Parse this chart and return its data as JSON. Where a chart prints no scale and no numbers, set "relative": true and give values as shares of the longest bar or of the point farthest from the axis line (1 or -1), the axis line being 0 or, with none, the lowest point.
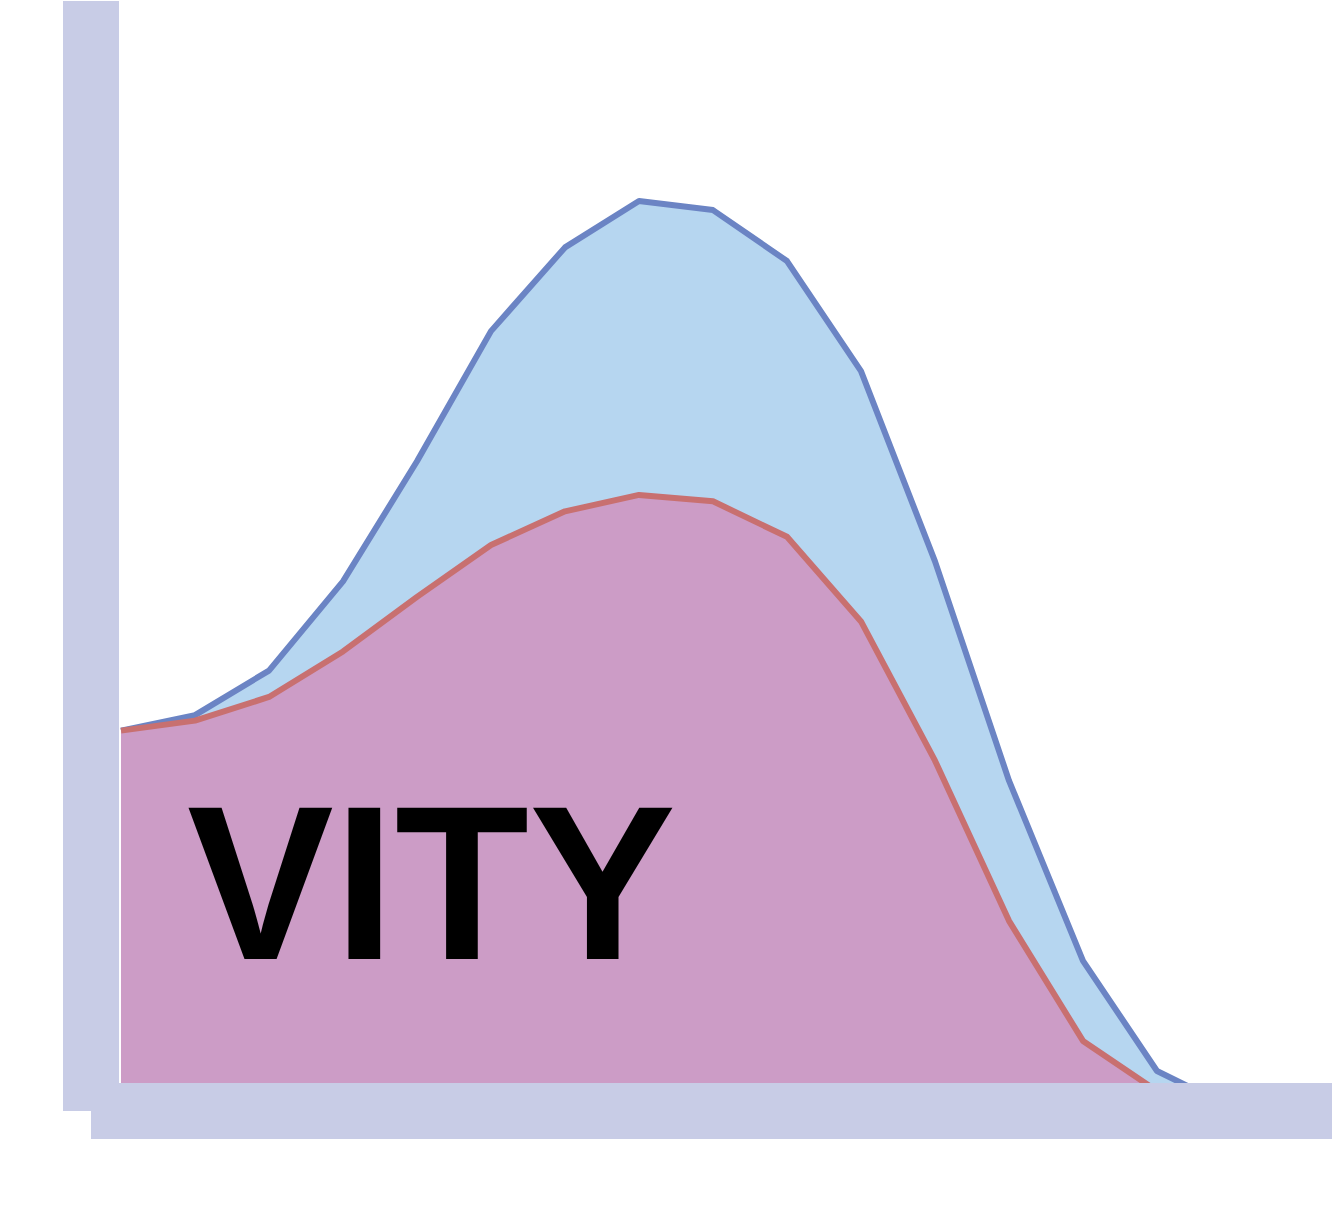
{
  "chart_data": {
    "type": "area",
    "relative": true,
    "categories": [
      null,
      null,
      null,
      null,
      null,
      null,
      null,
      null,
      null,
      null,
      null,
      null,
      null,
      null,
      null,
      null
    ],
    "series": [
      {
        "color": "#6b84c4",
        "values": [
          0.418,
          0.435,
          0.484,
          0.582,
          0.714,
          0.857,
          0.949,
          1.0,
          0.99,
          0.934,
          0.813,
          0.604,
          0.363,
          0.165,
          0.044,
          0.004
        ]
      },
      {
        "color": "#c87070",
        "values": [
          0.418,
          0.429,
          0.455,
          0.505,
          0.565,
          0.622,
          0.659,
          0.677,
          0.67,
          0.631,
          0.538,
          0.385,
          0.209,
          0.077,
          0.022,
          0.004
        ]
      }
    ],
    "annotations": [
      "VITY"
    ],
    "grid": false
  }
}
